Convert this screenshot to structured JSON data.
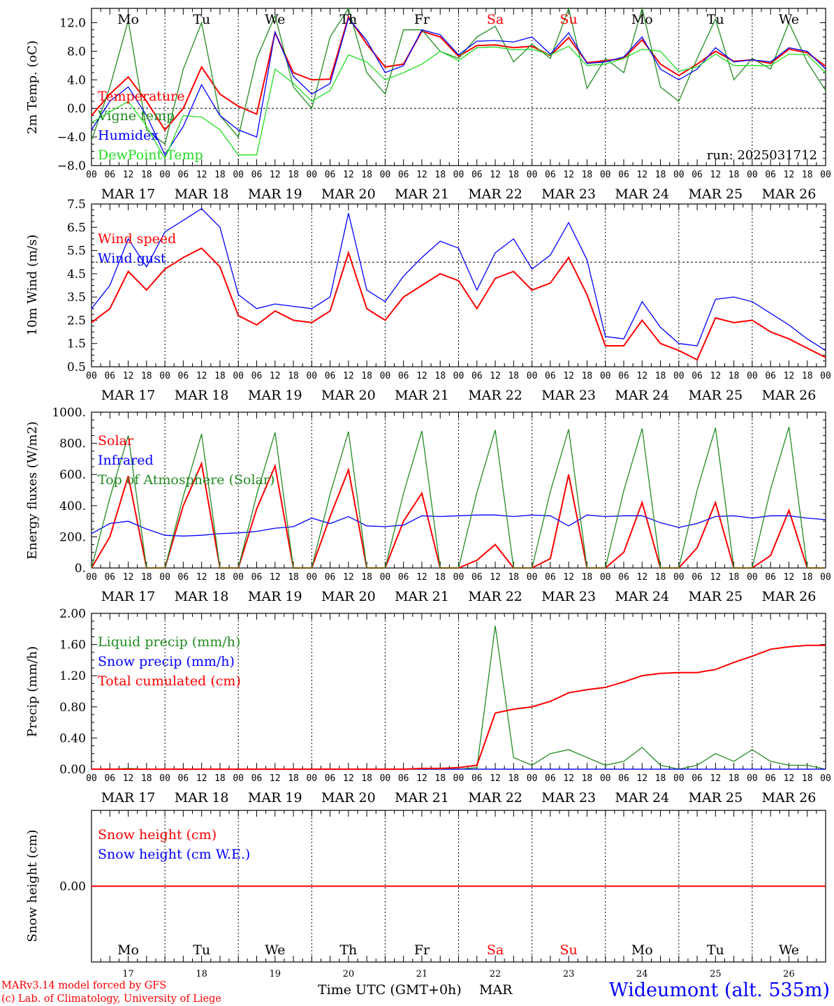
{
  "days": {
    "weekdays": [
      "Mo",
      "Tu",
      "We",
      "Th",
      "Fr",
      "Sa",
      "Su",
      "Mo",
      "Tu",
      "We"
    ],
    "weekend_flags": [
      false,
      false,
      false,
      false,
      false,
      true,
      true,
      false,
      false,
      false
    ],
    "dates": [
      "MAR 17",
      "MAR 18",
      "MAR 19",
      "MAR 20",
      "MAR 21",
      "MAR 22",
      "MAR 23",
      "MAR 24",
      "MAR 25",
      "MAR 26"
    ],
    "day_numbers": [
      "17",
      "18",
      "19",
      "20",
      "21",
      "22",
      "23",
      "24",
      "25",
      "26"
    ],
    "hour_ticks": [
      "00",
      "06",
      "12",
      "18"
    ],
    "last_tick": "00"
  },
  "colors": {
    "red": "#ff0000",
    "green": "#228b22",
    "blue": "#0000ff",
    "lightgreen": "#22dd22",
    "weekend": "#ff0000",
    "text": "#000000"
  },
  "footer": {
    "model_line": "MARv3.14 model forced by GFS",
    "lab_line": "(c) Lab. of Climatology, University of Liege",
    "axis_title": "Time UTC (GMT+0h)",
    "month": "MAR",
    "station": "Wideumont (alt. 535m)"
  },
  "chart_data": [
    {
      "type": "line",
      "ylabel": "2m Temp. (oC)",
      "ylim": [
        -8,
        14
      ],
      "yticks": [
        "12.0",
        "8.0",
        "4.0",
        "0.0",
        "−4.0",
        "−8.0"
      ],
      "ytick_values": [
        12,
        8,
        4,
        0,
        -4,
        -8
      ],
      "reference_line": 0,
      "run_label": "run: 2025031712",
      "x_hours": [
        0,
        6,
        12,
        18,
        24,
        30,
        36,
        42,
        48,
        54,
        60,
        66,
        72,
        78,
        84,
        90,
        96,
        102,
        108,
        114,
        120,
        126,
        132,
        138,
        144,
        150,
        156,
        162,
        168,
        174,
        180,
        186,
        192,
        198,
        204,
        210,
        216,
        222,
        228,
        234,
        240
      ],
      "series": [
        {
          "name": "Temperature",
          "color": "red",
          "values": [
            -1.0,
            2.0,
            4.4,
            1.0,
            -3.0,
            0.0,
            5.8,
            2.0,
            0.3,
            -0.8,
            10.6,
            5.0,
            4.0,
            4.1,
            12.8,
            9.0,
            5.8,
            6.2,
            10.8,
            10.0,
            7.3,
            8.8,
            8.9,
            8.5,
            8.7,
            7.4,
            9.9,
            6.4,
            6.7,
            7.0,
            9.6,
            6.2,
            4.6,
            6.2,
            8.0,
            6.6,
            6.8,
            6.3,
            8.3,
            7.8,
            5.9
          ]
        },
        {
          "name": "Vigne temp",
          "color": "green",
          "values": [
            -4.5,
            3.0,
            12.3,
            -3.0,
            -5.0,
            5.5,
            12.0,
            -1.0,
            -4.0,
            7.0,
            13.0,
            3.0,
            0.0,
            10.0,
            14.0,
            5.0,
            2.0,
            11.0,
            11.0,
            8.0,
            7.0,
            10.0,
            11.5,
            6.5,
            9.0,
            7.0,
            14.0,
            2.8,
            7.0,
            5.0,
            14.0,
            3.0,
            1.0,
            7.0,
            12.5,
            4.0,
            7.0,
            5.5,
            12.0,
            6.5,
            2.5
          ]
        },
        {
          "name": "Humidex",
          "color": "blue",
          "values": [
            -3.0,
            1.0,
            3.0,
            -1.0,
            -6.5,
            -2.5,
            3.3,
            -1.0,
            -3.0,
            -4.0,
            10.7,
            4.5,
            2.0,
            3.5,
            12.6,
            9.5,
            5.0,
            6.0,
            11.0,
            10.3,
            7.5,
            9.4,
            9.5,
            9.3,
            10.0,
            7.6,
            10.6,
            6.3,
            6.5,
            7.2,
            10.0,
            5.5,
            4.0,
            5.5,
            8.5,
            6.5,
            6.8,
            6.5,
            8.5,
            8.0,
            5.5
          ]
        },
        {
          "name": "DewPoint Temp",
          "color": "lightgreen",
          "values": [
            -2.0,
            -0.5,
            1.0,
            -2.5,
            -7.0,
            -1.0,
            -1.2,
            -3.0,
            -6.5,
            -6.5,
            5.5,
            3.5,
            1.0,
            2.5,
            7.5,
            6.5,
            4.0,
            5.0,
            6.2,
            8.0,
            6.7,
            8.5,
            8.6,
            8.2,
            8.3,
            7.5,
            8.7,
            6.0,
            6.2,
            7.0,
            8.3,
            8.0,
            5.2,
            5.8,
            7.6,
            6.0,
            6.0,
            6.0,
            7.6,
            7.5,
            5.0
          ]
        }
      ]
    },
    {
      "type": "line",
      "ylabel": "10m Wind (m/s)",
      "ylim": [
        0.5,
        7.5
      ],
      "yticks": [
        "7.5",
        "6.5",
        "5.5",
        "4.5",
        "3.5",
        "2.5",
        "1.5",
        "0.5"
      ],
      "ytick_values": [
        7.5,
        6.5,
        5.5,
        4.5,
        3.5,
        2.5,
        1.5,
        0.5
      ],
      "reference_line": 5.0,
      "x_hours": [
        0,
        6,
        12,
        18,
        24,
        30,
        36,
        42,
        48,
        54,
        60,
        66,
        72,
        78,
        84,
        90,
        96,
        102,
        108,
        114,
        120,
        126,
        132,
        138,
        144,
        150,
        156,
        162,
        168,
        174,
        180,
        186,
        192,
        198,
        204,
        210,
        216,
        222,
        228,
        234,
        240
      ],
      "series": [
        {
          "name": "Wind speed",
          "color": "red",
          "values": [
            2.4,
            3.0,
            4.6,
            3.8,
            4.7,
            5.2,
            5.6,
            4.8,
            2.7,
            2.3,
            2.9,
            2.5,
            2.4,
            2.9,
            5.4,
            3.0,
            2.5,
            3.5,
            4.0,
            4.5,
            4.2,
            3.0,
            4.3,
            4.6,
            3.8,
            4.1,
            5.2,
            3.6,
            1.4,
            1.4,
            2.5,
            1.5,
            1.2,
            0.8,
            2.6,
            2.4,
            2.5,
            2.0,
            1.7,
            1.3,
            0.9
          ]
        },
        {
          "name": "Wind gust",
          "color": "blue",
          "values": [
            3.0,
            4.0,
            6.0,
            4.8,
            6.3,
            6.8,
            7.3,
            6.5,
            3.6,
            3.0,
            3.2,
            3.1,
            3.0,
            3.5,
            7.1,
            3.8,
            3.3,
            4.4,
            5.2,
            5.9,
            5.6,
            3.8,
            5.4,
            6.0,
            4.7,
            5.3,
            6.7,
            5.1,
            1.8,
            1.7,
            3.3,
            2.2,
            1.5,
            1.4,
            3.4,
            3.5,
            3.3,
            2.8,
            2.3,
            1.7,
            1.2
          ]
        }
      ]
    },
    {
      "type": "line",
      "ylabel": "Energy fluxes (W/m2)",
      "ylim": [
        0,
        1000
      ],
      "yticks": [
        "1000.",
        "800.",
        "600.",
        "400.",
        "200.",
        "0."
      ],
      "ytick_values": [
        1000,
        800,
        600,
        400,
        200,
        0
      ],
      "x_hours": [
        0,
        6,
        12,
        18,
        24,
        30,
        36,
        42,
        48,
        54,
        60,
        66,
        72,
        78,
        84,
        90,
        96,
        102,
        108,
        114,
        120,
        126,
        132,
        138,
        144,
        150,
        156,
        162,
        168,
        174,
        180,
        186,
        192,
        198,
        204,
        210,
        216,
        222,
        228,
        234,
        240
      ],
      "series": [
        {
          "name": "Solar",
          "color": "red",
          "values": [
            0,
            200,
            590,
            0,
            0,
            400,
            670,
            0,
            0,
            380,
            655,
            0,
            0,
            330,
            630,
            0,
            0,
            300,
            480,
            0,
            0,
            50,
            150,
            0,
            0,
            60,
            600,
            0,
            0,
            100,
            420,
            0,
            0,
            130,
            420,
            0,
            0,
            80,
            370,
            0,
            0
          ]
        },
        {
          "name": "Infrared",
          "color": "blue",
          "values": [
            220,
            285,
            300,
            250,
            210,
            205,
            210,
            220,
            225,
            235,
            255,
            265,
            320,
            285,
            330,
            270,
            265,
            275,
            335,
            330,
            335,
            340,
            340,
            330,
            340,
            335,
            270,
            340,
            330,
            335,
            335,
            290,
            260,
            285,
            330,
            335,
            320,
            335,
            335,
            320,
            310
          ]
        },
        {
          "name": "Top of Atmosphere (Solar)",
          "color": "green",
          "values": [
            0,
            450,
            850,
            0,
            0,
            460,
            860,
            0,
            0,
            470,
            870,
            0,
            0,
            475,
            875,
            0,
            0,
            480,
            880,
            0,
            0,
            485,
            885,
            0,
            0,
            490,
            890,
            0,
            0,
            495,
            895,
            0,
            0,
            500,
            900,
            0,
            0,
            505,
            905,
            0,
            0
          ]
        }
      ]
    },
    {
      "type": "line",
      "ylabel": "Precip (mm/h)",
      "ylim": [
        0,
        2.0
      ],
      "yticks": [
        "2.00",
        "1.60",
        "1.20",
        "0.80",
        "0.40",
        "0.00"
      ],
      "ytick_values": [
        2.0,
        1.6,
        1.2,
        0.8,
        0.4,
        0
      ],
      "x_hours": [
        0,
        6,
        12,
        18,
        24,
        30,
        36,
        42,
        48,
        54,
        60,
        66,
        72,
        78,
        84,
        90,
        96,
        102,
        108,
        114,
        120,
        126,
        132,
        138,
        144,
        150,
        156,
        162,
        168,
        174,
        180,
        186,
        192,
        198,
        204,
        210,
        216,
        222,
        228,
        234,
        240
      ],
      "series": [
        {
          "name": "Liquid precip (mm/h)",
          "color": "green",
          "values": [
            0,
            0,
            0.01,
            0,
            0,
            0,
            0,
            0,
            0,
            0,
            0,
            0,
            0,
            0,
            0,
            0,
            0,
            0,
            0,
            0,
            0,
            0.02,
            1.84,
            0.15,
            0.05,
            0.2,
            0.25,
            0.15,
            0.05,
            0.1,
            0.28,
            0.05,
            0,
            0.05,
            0.2,
            0.1,
            0.25,
            0.1,
            0.05,
            0.05,
            0
          ]
        },
        {
          "name": "Snow precip (mm/h)",
          "color": "blue",
          "values": [
            0,
            0,
            0,
            0,
            0,
            0,
            0,
            0,
            0,
            0,
            0,
            0,
            0,
            0,
            0,
            0,
            0,
            0,
            0,
            0,
            0,
            0,
            0,
            0,
            0,
            0,
            0,
            0,
            0,
            0,
            0,
            0,
            0,
            0,
            0,
            0,
            0,
            0,
            0,
            0,
            0
          ]
        },
        {
          "name": "Total cumulated (cm)",
          "color": "red",
          "values": [
            0,
            0,
            0,
            0,
            0,
            0,
            0,
            0,
            0,
            0,
            0,
            0,
            0,
            0,
            0,
            0,
            0,
            0,
            0.01,
            0.01,
            0.02,
            0.05,
            0.72,
            0.77,
            0.8,
            0.87,
            0.98,
            1.02,
            1.05,
            1.12,
            1.2,
            1.23,
            1.24,
            1.24,
            1.28,
            1.37,
            1.45,
            1.54,
            1.57,
            1.59,
            1.59
          ]
        }
      ]
    },
    {
      "type": "line",
      "ylabel": "Snow height (cm)",
      "yticks": [
        "0.00"
      ],
      "ytick_values": [
        0
      ],
      "x_hours": [
        0,
        240
      ],
      "series": [
        {
          "name": "Snow height (cm)",
          "color": "red",
          "values": [
            0,
            0
          ]
        },
        {
          "name": "Snow height (cm W.E.)",
          "color": "blue",
          "values": []
        }
      ]
    }
  ]
}
